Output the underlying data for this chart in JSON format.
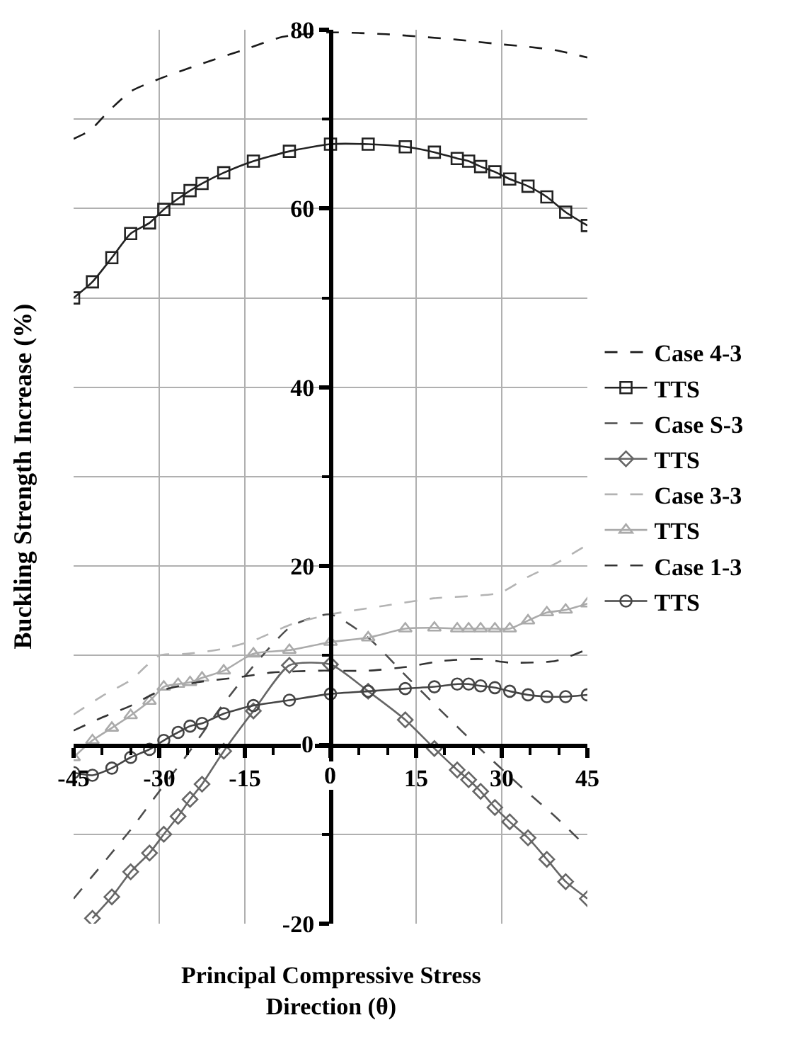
{
  "chart_data": {
    "type": "line",
    "xlabel": "Principal Compressive Stress\nDirection (θ)",
    "ylabel": "Buckling Strength Increase (%)",
    "xlim": [
      -45,
      45
    ],
    "xticks": [
      -45,
      {
        "value": -40,
        "label": null
      },
      {
        "value": -35,
        "label": null
      },
      -30,
      {
        "value": -25,
        "label": null
      },
      {
        "value": -20,
        "label": null
      },
      -15,
      {
        "value": -10,
        "label": null
      },
      {
        "value": -5,
        "label": null
      },
      0,
      {
        "value": 5,
        "label": null
      },
      {
        "value": 10,
        "label": null
      },
      15,
      {
        "value": 20,
        "label": null
      },
      {
        "value": 25,
        "label": null
      },
      30,
      {
        "value": 35,
        "label": null
      },
      {
        "value": 40,
        "label": null
      },
      45
    ],
    "ylim": [
      -20,
      80
    ],
    "yticks": [
      -20,
      {
        "value": -10,
        "label": null
      },
      0,
      {
        "value": 10,
        "label": null
      },
      20,
      {
        "value": 30,
        "label": null
      },
      40,
      {
        "value": 50,
        "label": null
      },
      60,
      {
        "value": 70,
        "label": null
      },
      80
    ],
    "grid": true,
    "legend": "right",
    "series": [
      {
        "name": "Case 4-3",
        "color": "#1a1a1a",
        "line_style": "dashed",
        "marker": "none",
        "x": [
          -45,
          -42,
          -39,
          -35,
          -30,
          -23,
          -15,
          -8.4,
          0,
          9.7,
          22,
          29.5,
          34.5,
          39.5,
          45
        ],
        "values": [
          67.8,
          68.8,
          70.8,
          73.1,
          74.5,
          76.1,
          77.8,
          79.2,
          79.7,
          79.5,
          78.9,
          78.4,
          78.1,
          77.7,
          76.9
        ]
      },
      {
        "name": "TTS",
        "color": "#222222",
        "line_style": "solid",
        "marker": "square",
        "x": [
          -45,
          -41.7,
          -38.3,
          -35,
          -31.7,
          -29.2,
          -26.7,
          -24.6,
          -22.5,
          -18.7,
          -13.5,
          -7.2,
          0,
          6.6,
          13.1,
          18.2,
          22.2,
          24.2,
          26.3,
          28.8,
          31.4,
          34.6,
          37.9,
          41.2,
          45
        ],
        "values": [
          50.0,
          51.8,
          54.5,
          57.2,
          58.4,
          59.9,
          61.1,
          62.0,
          62.8,
          64.0,
          65.3,
          66.4,
          67.2,
          67.2,
          66.9,
          66.3,
          65.6,
          65.3,
          64.7,
          64.1,
          63.3,
          62.5,
          61.3,
          59.6,
          58.1
        ]
      },
      {
        "name": "Case S-3",
        "color": "#4d4d4d",
        "line_style": "dashed",
        "marker": "none",
        "x": [
          -45,
          -39.9,
          -34.9,
          -30,
          -25,
          -19.2,
          -13.4,
          -6.8,
          0,
          6.6,
          13.1,
          19.7,
          26.3,
          32.9,
          39.5,
          45
        ],
        "values": [
          -17.2,
          -13.3,
          -9.4,
          -5.2,
          -1.0,
          4.2,
          8.9,
          13.3,
          14.6,
          12.0,
          7.8,
          3.6,
          -0.5,
          -4.4,
          -8.1,
          -11.5
        ]
      },
      {
        "name": "TTS",
        "color": "#666666",
        "line_style": "solid",
        "marker": "diamond",
        "x": [
          -41.7,
          -38.3,
          -35,
          -31.7,
          -29.2,
          -26.7,
          -24.6,
          -22.5,
          -18.7,
          -13.5,
          -7.2,
          0,
          6.6,
          13.1,
          18.2,
          22.2,
          24.2,
          26.3,
          28.8,
          31.4,
          34.6,
          37.9,
          41.2,
          45
        ],
        "values": [
          -19.4,
          -17.0,
          -14.2,
          -12.1,
          -10.0,
          -8.0,
          -6.1,
          -4.4,
          -0.7,
          3.8,
          8.9,
          9.0,
          6.0,
          2.8,
          -0.4,
          -2.8,
          -3.9,
          -5.2,
          -7.0,
          -8.6,
          -10.4,
          -12.8,
          -15.3,
          -17.2
        ]
      },
      {
        "name": "Case 3-3",
        "color": "#b3b3b3",
        "line_style": "dashed",
        "marker": "none",
        "x": [
          -45,
          -39.9,
          -34.9,
          -30,
          -25,
          -19.2,
          -13.4,
          -6.8,
          0,
          9.8,
          18.1,
          29.6,
          34.6,
          39.5,
          45
        ],
        "values": [
          3.4,
          5.5,
          7.3,
          10.0,
          10.2,
          10.7,
          11.7,
          13.5,
          14.6,
          15.6,
          16.4,
          17.0,
          18.8,
          20.3,
          22.4
        ]
      },
      {
        "name": "TTS",
        "color": "#aaaaaa",
        "line_style": "solid",
        "marker": "triangle",
        "x": [
          -45,
          -41.7,
          -38.3,
          -35,
          -31.7,
          -29.2,
          -26.7,
          -24.6,
          -22.5,
          -18.7,
          -13.5,
          -7.2,
          0,
          6.6,
          13.1,
          18.2,
          22.2,
          24.2,
          26.3,
          28.8,
          31.4,
          34.6,
          37.9,
          41.2,
          45
        ],
        "values": [
          -1.4,
          0.5,
          1.9,
          3.3,
          4.9,
          6.5,
          6.8,
          7.0,
          7.5,
          8.3,
          10.2,
          10.6,
          11.5,
          12.0,
          13.0,
          13.1,
          13.0,
          13.0,
          13.0,
          13.0,
          13.0,
          13.9,
          14.8,
          15.1,
          15.8
        ]
      },
      {
        "name": "Case 1-3",
        "color": "#333333",
        "line_style": "dashed",
        "marker": "none",
        "x": [
          -45,
          -39.9,
          -34.9,
          -30,
          -23.4,
          -16.8,
          -10.2,
          -1.9,
          6.6,
          13.1,
          19.7,
          26.3,
          31.3,
          39.5,
          45
        ],
        "values": [
          1.6,
          3.1,
          4.4,
          6.0,
          7.0,
          7.5,
          8.1,
          8.3,
          8.3,
          8.7,
          9.4,
          9.6,
          9.2,
          9.4,
          10.7
        ]
      },
      {
        "name": "TTS",
        "color": "#444444",
        "line_style": "solid",
        "marker": "circle",
        "x": [
          -45,
          -41.7,
          -38.3,
          -35,
          -31.7,
          -29.2,
          -26.7,
          -24.6,
          -22.5,
          -18.7,
          -13.5,
          -7.2,
          0,
          6.6,
          13.1,
          18.2,
          22.2,
          24.2,
          26.3,
          28.8,
          31.4,
          34.6,
          37.9,
          41.2,
          45
        ],
        "values": [
          -3.1,
          -3.4,
          -2.6,
          -1.4,
          -0.5,
          0.5,
          1.4,
          2.1,
          2.4,
          3.5,
          4.4,
          5.0,
          5.7,
          6.0,
          6.3,
          6.5,
          6.8,
          6.8,
          6.6,
          6.4,
          6.0,
          5.6,
          5.4,
          5.4,
          5.6
        ]
      }
    ]
  }
}
